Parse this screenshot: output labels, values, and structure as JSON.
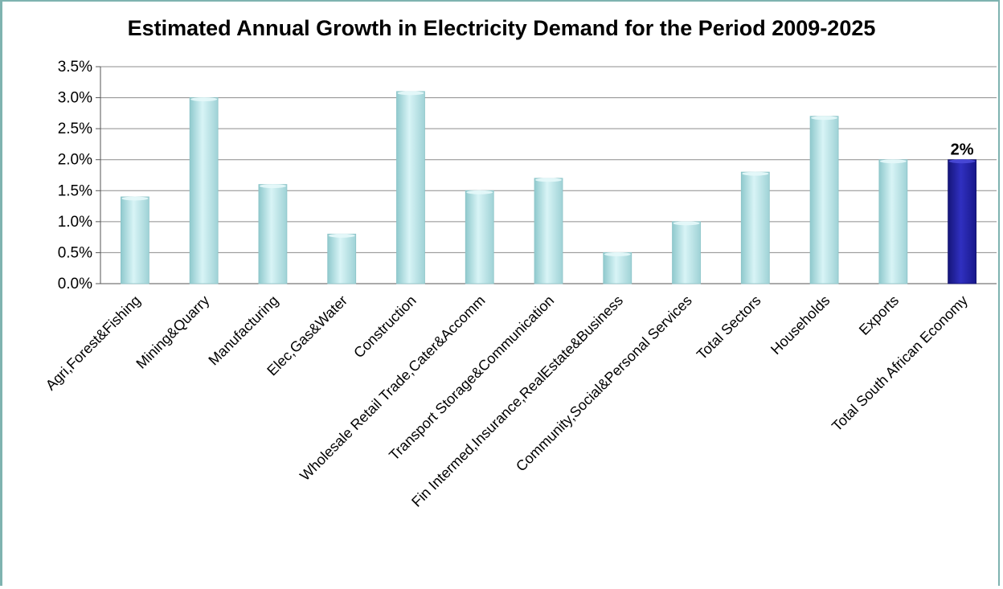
{
  "chart_data": {
    "type": "bar",
    "title": "Estimated Annual Growth in Electricity Demand for the Period 2009-2025",
    "xlabel": "",
    "ylabel": "",
    "ylim": [
      0,
      0.035
    ],
    "y_ticks": [
      "0.0%",
      "0.5%",
      "1.0%",
      "1.5%",
      "2.0%",
      "2.5%",
      "3.0%",
      "3.5%"
    ],
    "grid": "horizontal",
    "categories": [
      "Agri,Forest&Fishing",
      "Mining&Quarry",
      "Manufacturing",
      "Elec,Gas&Water",
      "Construction",
      "Wholesale Retail Trade,Cater&Accomm",
      "Transport Storage&Communication",
      "Fin Intermed,Insurance,RealEstate&Business",
      "Community,Social&Personal Services",
      "Total Sectors",
      "Households",
      "Exports",
      "Total South African Economy"
    ],
    "values": [
      0.014,
      0.03,
      0.016,
      0.008,
      0.031,
      0.015,
      0.017,
      0.005,
      0.01,
      0.018,
      0.027,
      0.02,
      0.02
    ],
    "highlight_index": 12,
    "highlight_label": "2%",
    "colors": {
      "bar": "#b9e6ea",
      "bar_edge": "#8cc4c8",
      "highlight": "#1f1f9e",
      "grid": "#8c8c8c"
    }
  }
}
